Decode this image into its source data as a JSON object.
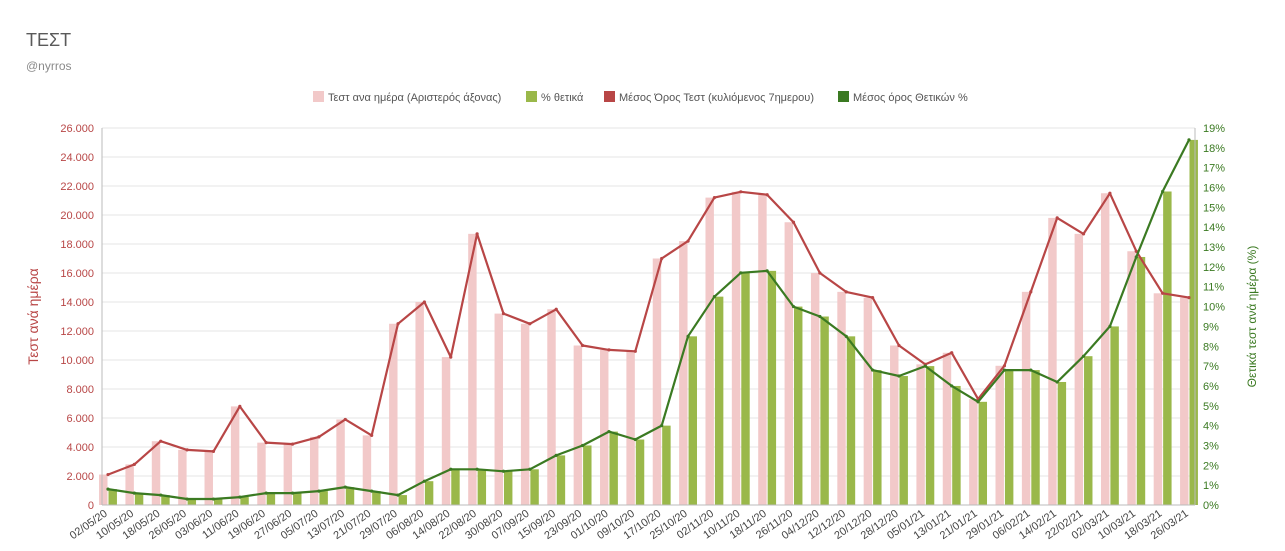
{
  "header": {
    "title": "ΤΕΣΤ",
    "subtitle": "@nyrros"
  },
  "chart_data": {
    "type": "bar",
    "colors": {
      "tests_bar": "#f2c9c9",
      "positive_bar": "#9ab84a",
      "tests_avg_line": "#b84646",
      "positive_avg_line": "#3b7a22",
      "left_axis": "#b84646",
      "right_axis": "#3b7a22"
    },
    "legend": [
      {
        "key": "tests_bar",
        "label": "Τεστ ανα ημέρα (Αριστερός άξονας)"
      },
      {
        "key": "positive_bar",
        "label": "% θετικά"
      },
      {
        "key": "tests_avg_line",
        "label": "Μέσος Όρος Τεστ (κυλιόμενος 7ημερου)"
      },
      {
        "key": "positive_avg_line",
        "label": "Μέσος όρος Θετικών %"
      }
    ],
    "ylabel": "Τεστ ανά ημέρα",
    "y2label": "Θετικά τεστ ανά ημέρα (%)",
    "ylim": [
      0,
      26000
    ],
    "y2lim": [
      0,
      19
    ],
    "yticks": [
      "0",
      "2.000",
      "4.000",
      "6.000",
      "8.000",
      "10.000",
      "12.000",
      "14.000",
      "16.000",
      "18.000",
      "20.000",
      "22.000",
      "24.000",
      "26.000"
    ],
    "y2ticks": [
      "0%",
      "1%",
      "2%",
      "3%",
      "4%",
      "5%",
      "6%",
      "7%",
      "8%",
      "9%",
      "10%",
      "11%",
      "12%",
      "13%",
      "14%",
      "15%",
      "16%",
      "17%",
      "18%",
      "19%"
    ],
    "x_categories": [
      "02/05/20",
      "10/05/20",
      "18/05/20",
      "26/05/20",
      "03/06/20",
      "11/06/20",
      "19/06/20",
      "27/06/20",
      "05/07/20",
      "13/07/20",
      "21/07/20",
      "29/07/20",
      "06/08/20",
      "14/08/20",
      "22/08/20",
      "30/08/20",
      "07/09/20",
      "15/09/20",
      "23/09/20",
      "01/10/20",
      "09/10/20",
      "17/10/20",
      "25/10/20",
      "02/11/20",
      "10/11/20",
      "18/11/20",
      "26/11/20",
      "04/12/20",
      "12/12/20",
      "20/12/20",
      "28/12/20",
      "05/01/21",
      "13/01/21",
      "21/01/21",
      "29/01/21",
      "06/02/21",
      "14/02/21",
      "22/02/21",
      "02/03/21",
      "10/03/21",
      "18/03/21",
      "26/03/21"
    ],
    "series": [
      {
        "name": "Μέσος Όρος Τεστ (κυλιόμενος 7ημερου)",
        "axis": "left",
        "values": [
          2100,
          2800,
          4400,
          3800,
          3700,
          6800,
          4300,
          4200,
          4700,
          5900,
          4800,
          12500,
          14000,
          10200,
          18700,
          13200,
          12500,
          13500,
          11000,
          10700,
          10600,
          17000,
          18200,
          21200,
          21600,
          21400,
          19500,
          16000,
          14700,
          14300,
          11000,
          9700,
          10500,
          7300,
          9600,
          14700,
          19800,
          18700,
          21500,
          17500,
          14600,
          14300
        ]
      },
      {
        "name": "Μέσος όρος Θετικών %",
        "axis": "right",
        "values": [
          0.8,
          0.6,
          0.5,
          0.3,
          0.3,
          0.4,
          0.6,
          0.6,
          0.7,
          0.9,
          0.7,
          0.5,
          1.2,
          1.8,
          1.8,
          1.7,
          1.8,
          2.5,
          3.0,
          3.7,
          3.3,
          4.0,
          8.5,
          10.5,
          11.7,
          11.8,
          10.0,
          9.5,
          8.5,
          6.8,
          6.5,
          7.0,
          6.0,
          5.2,
          6.8,
          6.8,
          6.2,
          7.5,
          9.0,
          12.5,
          15.8,
          18.4
        ]
      }
    ]
  }
}
